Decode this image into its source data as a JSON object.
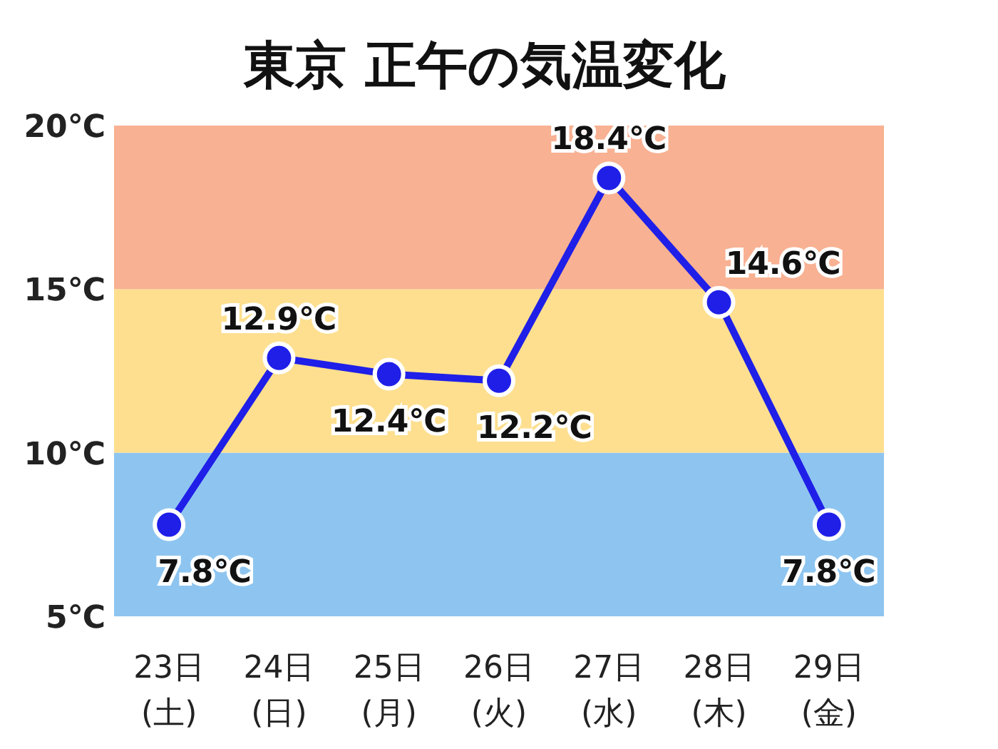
{
  "chart_data": {
    "type": "line",
    "title": "東京 正午の気温変化",
    "categories": [
      "23日\n(土)",
      "24日\n(日)",
      "25日\n(月)",
      "26日\n(火)",
      "27日\n(水)",
      "28日\n(木)",
      "29日\n(金)"
    ],
    "series": [
      {
        "color": "#1f1fe8",
        "values": [
          7.8,
          12.9,
          12.4,
          12.2,
          18.4,
          14.6,
          7.8
        ],
        "value_labels": [
          "7.8℃",
          "12.9℃",
          "12.4℃",
          "12.2℃",
          "18.4℃",
          "14.6℃",
          "7.8℃"
        ]
      }
    ],
    "ylim": [
      5,
      20
    ],
    "yticks": [
      {
        "value": 5,
        "label": "5℃"
      },
      {
        "value": 10,
        "label": "10℃"
      },
      {
        "value": 15,
        "label": "15℃"
      },
      {
        "value": 20,
        "label": "20℃"
      }
    ],
    "bands": [
      {
        "axis": "y",
        "from": 5,
        "to": 10,
        "color": "#8ec5f0"
      },
      {
        "axis": "y",
        "from": 10,
        "to": 15,
        "color": "#fddf8f"
      },
      {
        "axis": "y",
        "from": 15,
        "to": 20,
        "color": "#f8b192"
      }
    ],
    "marker": "circle",
    "grid": false
  }
}
